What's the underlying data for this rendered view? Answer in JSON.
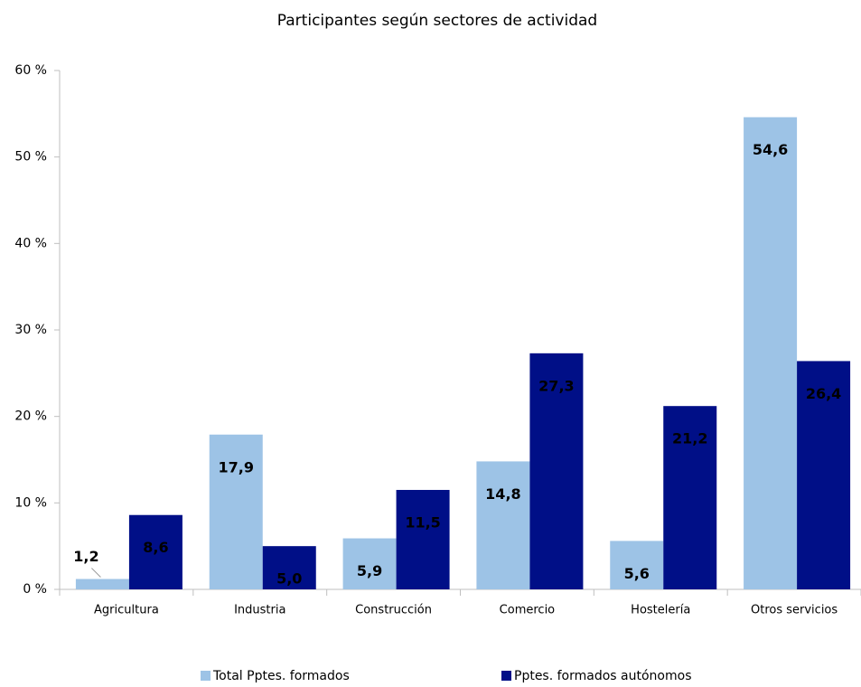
{
  "chart_data": {
    "type": "bar",
    "title": "Participantes según sectores de actividad",
    "categories": [
      "Agricultura",
      "Industria",
      "Construcción",
      "Comercio",
      "Hostelería",
      "Otros servicios"
    ],
    "series": [
      {
        "name": "Total Pptes. formados",
        "color": "#9dc3e6",
        "values": [
          1.2,
          17.9,
          5.9,
          14.8,
          5.6,
          54.6
        ],
        "value_labels": [
          "1,2",
          "17,9",
          "5,9",
          "14,8",
          "5,6",
          "54,6"
        ]
      },
      {
        "name": "Pptes. formados autónomos",
        "color": "#000f87",
        "values": [
          8.6,
          5.0,
          11.5,
          27.3,
          21.2,
          26.4
        ],
        "value_labels": [
          "8,6",
          "5,0",
          "11,5",
          "27,3",
          "21,2",
          "26,4"
        ]
      }
    ],
    "ylim": [
      0,
      60
    ],
    "yticks": [
      {
        "value": 0,
        "label": "0 %"
      },
      {
        "value": 10,
        "label": "10 %"
      },
      {
        "value": 20,
        "label": "20 %"
      },
      {
        "value": 30,
        "label": "30 %"
      },
      {
        "value": 40,
        "label": "40 %"
      },
      {
        "value": 50,
        "label": "50 %"
      },
      {
        "value": 60,
        "label": "60 %"
      }
    ],
    "legend": "bottom"
  }
}
